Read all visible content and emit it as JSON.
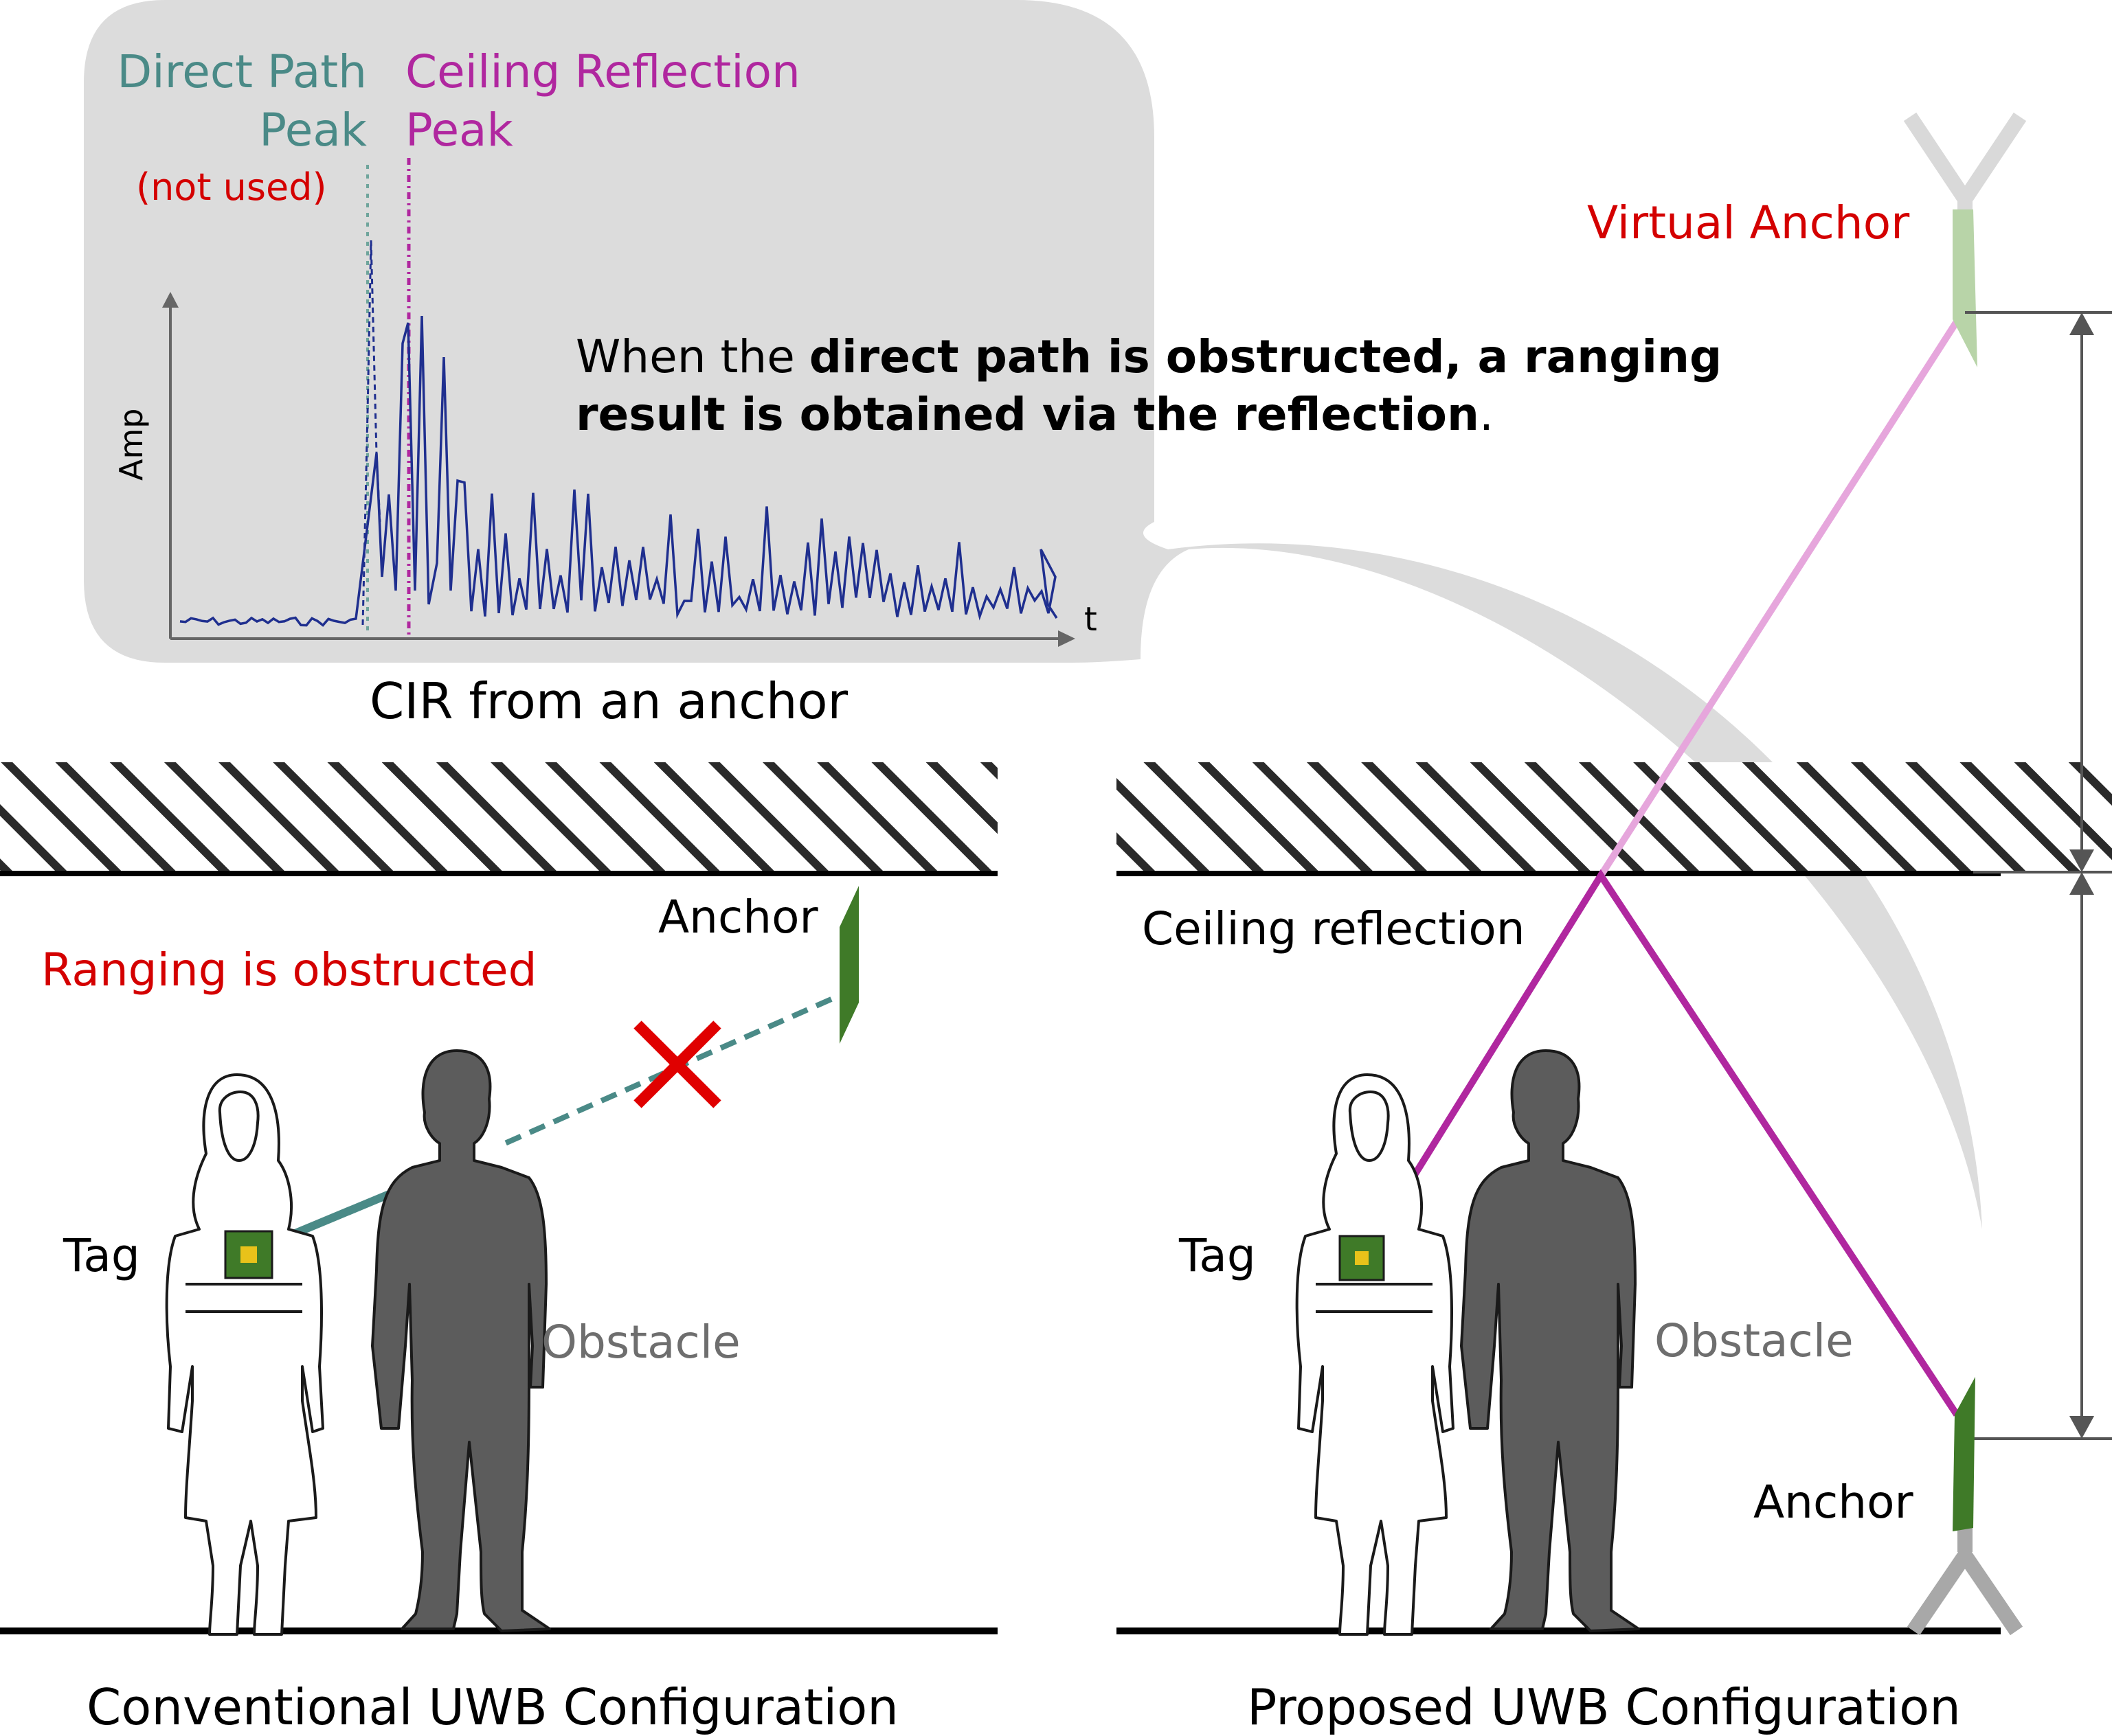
{
  "cir_panel": {
    "direct_path_label_line1": "Direct Path",
    "direct_path_label_line2": "Peak",
    "not_used_label": "(not used)",
    "ceiling_peak_label_line1": "Ceiling Reflection",
    "ceiling_peak_label_line2": "Peak",
    "y_axis_label": "Amp",
    "x_axis_label": "t",
    "caption": "CIR from an anchor"
  },
  "callout": {
    "pre": "When the ",
    "bold1": "direct path is obstructed",
    "mid": ", ",
    "bold2": "a ranging result is obtained via the reflection",
    "post": "."
  },
  "conventional": {
    "anchor_label": "Anchor",
    "obstructed_label": "Ranging is obstructed",
    "tag_label": "Tag",
    "obstacle_label": "Obstacle",
    "caption": "Conventional UWB Configuration"
  },
  "proposed": {
    "virtual_anchor_label": "Virtual Anchor",
    "ceiling_reflection_label": "Ceiling reflection",
    "tag_label": "Tag",
    "obstacle_label": "Obstacle",
    "anchor_label": "Anchor",
    "caption": "Proposed UWB Configuration"
  },
  "colors": {
    "direct_path": "#4a8a87",
    "reflection": "#b0279f",
    "virtual_path": "#e6a6dc",
    "anchor_green": "#3f7a28",
    "cir_trace": "#1f2f8f",
    "callout_bg": "#dcdcdc",
    "obstruction_x": "#e00000"
  },
  "icons": [
    "antenna-icon",
    "person-icon",
    "hatch-ceiling",
    "cross-icon"
  ]
}
